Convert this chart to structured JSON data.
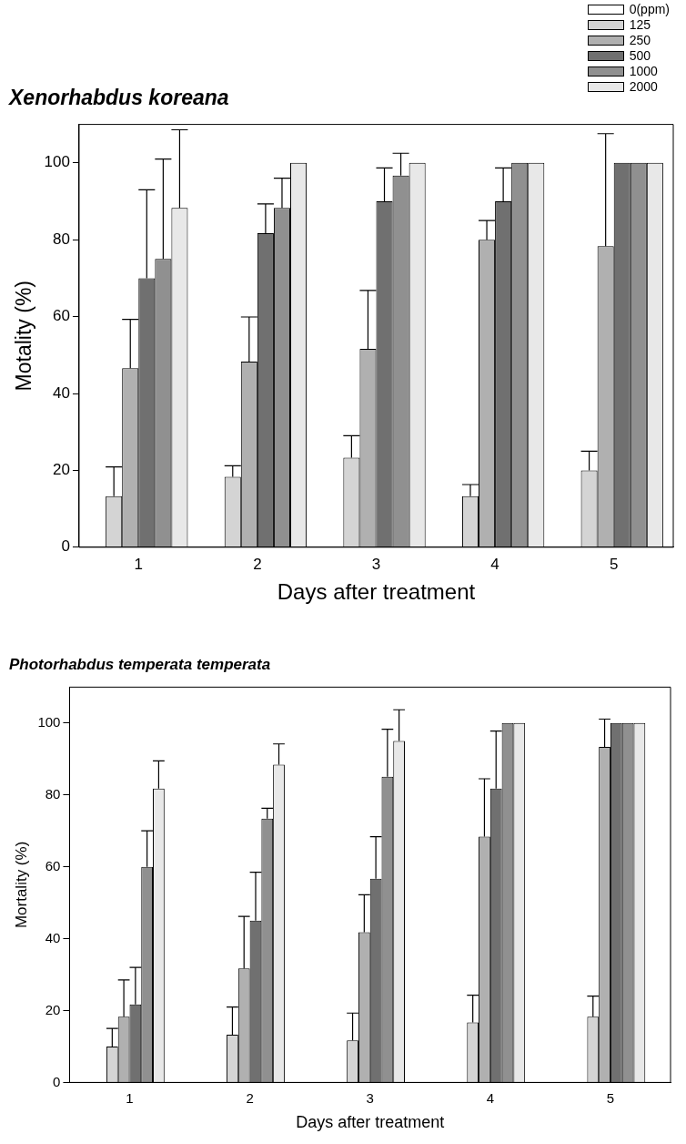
{
  "chart_data": [
    {
      "type": "bar",
      "title": "Xenorhabdus koreana",
      "xlabel": "Days after treatment",
      "ylabel": "Motality (%)",
      "categories": [
        "1",
        "2",
        "3",
        "4",
        "5"
      ],
      "ylim": [
        0,
        110
      ],
      "yticks": [
        0,
        20,
        40,
        60,
        80,
        100
      ],
      "grid": false,
      "legend": "top right",
      "series": [
        {
          "name": "0(ppm)",
          "color": "#ffffff",
          "values": [
            0,
            0,
            0,
            0,
            0
          ]
        },
        {
          "name": "125",
          "color": "#d4d4d4",
          "values": [
            13.3,
            18.3,
            23.3,
            13.3,
            20
          ],
          "errors": [
            [
              13.3,
              20.9
            ],
            [
              18.3,
              21.2
            ],
            [
              23.3,
              29
            ],
            [
              13.3,
              16.3
            ],
            [
              20,
              25
            ]
          ]
        },
        {
          "name": "250",
          "color": "#b0b0b0",
          "values": [
            46.6,
            48.3,
            51.6,
            80,
            78.3
          ],
          "errors": [
            [
              46.6,
              59.3
            ],
            [
              48.3,
              59.9
            ],
            [
              51.6,
              66.8
            ],
            [
              80,
              85
            ],
            [
              78.3,
              107.6
            ]
          ]
        },
        {
          "name": "500",
          "color": "#707070",
          "values": [
            70,
            81.7,
            90,
            90,
            100
          ],
          "errors": [
            [
              70,
              93
            ],
            [
              81.7,
              89.3
            ],
            [
              90,
              98.7
            ],
            [
              90,
              98.7
            ],
            null
          ]
        },
        {
          "name": "1000",
          "color": "#909090",
          "values": [
            75,
            88.3,
            96.7,
            100,
            100
          ],
          "errors": [
            [
              75,
              101
            ],
            [
              88.3,
              96
            ],
            [
              96.7,
              102.5
            ],
            null,
            null
          ]
        },
        {
          "name": "2000",
          "color": "#e8e8e8",
          "values": [
            88.3,
            100,
            100,
            100,
            100
          ],
          "errors": [
            [
              88.3,
              108.6
            ],
            null,
            null,
            null,
            null
          ]
        }
      ]
    },
    {
      "type": "bar",
      "title": "Photorhabdus temperata temperata",
      "xlabel": "Days after treatment",
      "ylabel": "Mortality (%)",
      "categories": [
        "1",
        "2",
        "3",
        "4",
        "5"
      ],
      "ylim": [
        0,
        110
      ],
      "yticks": [
        0,
        20,
        40,
        60,
        80,
        100
      ],
      "grid": false,
      "series": [
        {
          "color": "#ffffff",
          "values": [
            0,
            0,
            0,
            0,
            0
          ]
        },
        {
          "color": "#d4d4d4",
          "values": [
            10,
            13.3,
            11.7,
            16.7,
            18.3
          ],
          "errors": [
            [
              10,
              15
            ],
            [
              13.3,
              21
            ],
            [
              11.7,
              19.3
            ],
            [
              16.7,
              24.3
            ],
            [
              18.3,
              24
            ]
          ]
        },
        {
          "color": "#b0b0b0",
          "values": [
            18.3,
            31.7,
            41.8,
            68.4,
            93.4
          ],
          "errors": [
            [
              18.3,
              28.5
            ],
            [
              31.7,
              46.2
            ],
            [
              41.8,
              52.2
            ],
            [
              68.4,
              84.5
            ],
            [
              93.4,
              101.1
            ]
          ]
        },
        {
          "color": "#707070",
          "values": [
            21.7,
            45,
            56.7,
            81.8,
            100
          ],
          "errors": [
            [
              21.7,
              32
            ],
            [
              45,
              58.5
            ],
            [
              56.7,
              68.4
            ],
            [
              81.8,
              97.8
            ],
            null
          ]
        },
        {
          "color": "#909090",
          "values": [
            60,
            73.4,
            85.1,
            100,
            100
          ],
          "errors": [
            [
              60,
              70
            ],
            [
              73.4,
              76.3
            ],
            [
              85.1,
              98.3
            ],
            null,
            null
          ]
        },
        {
          "color": "#e8e8e8",
          "values": [
            81.8,
            88.4,
            95,
            100,
            100
          ],
          "errors": [
            [
              81.8,
              89.5
            ],
            [
              88.4,
              94.2
            ],
            [
              95,
              103.7
            ],
            null,
            null
          ]
        }
      ]
    }
  ]
}
